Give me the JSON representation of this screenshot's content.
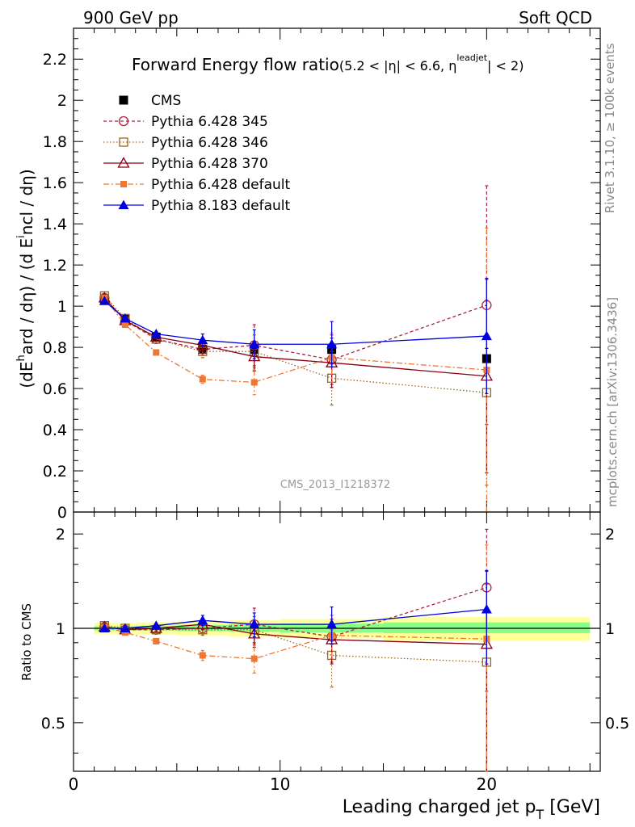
{
  "header": {
    "left_label": "900 GeV pp",
    "right_label": "Soft QCD"
  },
  "side_labels": {
    "rivet": "Rivet 3.1.10, ≥ 100k events",
    "mcplots": "mcplots.cern.ch [arXiv:1306.3436]"
  },
  "colors": {
    "cms": "#000000",
    "p345": "#aa2244",
    "p346": "#996622",
    "p370": "#880011",
    "p6def": "#ee7733",
    "p8def": "#0000dd",
    "band_stat": "#88ff88",
    "band_syst": "#ffff99"
  },
  "chart_data": [
    {
      "type": "line",
      "panel": "main",
      "title": "Forward Energy flow ratio",
      "title_suffix_parts": [
        "(5.2 < |η| < 6.6, η",
        "leadjet",
        "| < 2)"
      ],
      "ylabel_parts": [
        "(dE",
        "h",
        "ard / dη) / (d E",
        "i",
        "ncl / dη)"
      ],
      "watermark": "CMS_2013_I1218372",
      "xlim": [
        0,
        25.5
      ],
      "ylim": [
        0,
        2.35
      ],
      "yticks": [
        0,
        0.2,
        0.4,
        0.6,
        0.8,
        1,
        1.2,
        1.4,
        1.6,
        1.8,
        2,
        2.2
      ],
      "ytick_labels": [
        "0",
        "0.2",
        "0.4",
        "0.6",
        "0.8",
        "1",
        "1.2",
        "1.4",
        "1.6",
        "1.8",
        "2",
        "2.2"
      ],
      "x": [
        1.5,
        2.5,
        4.0,
        6.25,
        8.75,
        12.5,
        20.0
      ],
      "series": [
        {
          "name": "CMS",
          "values": [
            1.03,
            0.94,
            0.85,
            0.79,
            0.79,
            0.79,
            0.745
          ],
          "errors": [
            0.01,
            0.01,
            0.01,
            0.01,
            0.01,
            0.02,
            0.05
          ]
        },
        {
          "name": "Pythia 6.428 345",
          "values": [
            1.04,
            0.93,
            0.84,
            0.79,
            0.81,
            0.74,
            1.005
          ],
          "errors": [
            0.01,
            0.01,
            0.02,
            0.03,
            0.1,
            0.12,
            0.58
          ]
        },
        {
          "name": "Pythia 6.428 346",
          "values": [
            1.05,
            0.94,
            0.84,
            0.78,
            0.78,
            0.65,
            0.58
          ],
          "errors": [
            0.01,
            0.01,
            0.02,
            0.03,
            0.08,
            0.13,
            0.45
          ]
        },
        {
          "name": "Pythia 6.428 370",
          "values": [
            1.04,
            0.93,
            0.85,
            0.81,
            0.755,
            0.725,
            0.66
          ],
          "errors": [
            0.01,
            0.01,
            0.02,
            0.03,
            0.07,
            0.12,
            0.47
          ]
        },
        {
          "name": "Pythia 6.428 default",
          "values": [
            1.04,
            0.91,
            0.775,
            0.645,
            0.63,
            0.75,
            0.69
          ],
          "errors": [
            0.01,
            0.01,
            0.01,
            0.02,
            0.06,
            0.12,
            0.69
          ]
        },
        {
          "name": "Pythia 8.183 default",
          "values": [
            1.025,
            0.94,
            0.865,
            0.835,
            0.815,
            0.815,
            0.855
          ],
          "errors": [
            0.01,
            0.01,
            0.01,
            0.03,
            0.07,
            0.11,
            0.28
          ]
        }
      ]
    },
    {
      "type": "line",
      "panel": "ratio",
      "ylabel": "Ratio to CMS",
      "xlabel_parts": [
        "Leading charged jet p",
        "T",
        " [GeV]"
      ],
      "xlim": [
        0,
        25.5
      ],
      "ylim": [
        0.35,
        2.35
      ],
      "yscale": "log",
      "xticks": [
        0,
        10,
        20
      ],
      "xtick_labels": [
        "0",
        "10",
        "20"
      ],
      "yticks": [
        0.5,
        1,
        2
      ],
      "ytick_labels": [
        "0.5",
        "1",
        "2"
      ],
      "x": [
        1.5,
        2.5,
        4.0,
        6.25,
        8.75,
        12.5,
        20.0
      ],
      "bands": [
        {
          "name": "syst",
          "x": [
            [
              1.0,
              2.0
            ],
            [
              2.0,
              3.0
            ],
            [
              3.0,
              5.0
            ],
            [
              5.0,
              7.5
            ],
            [
              7.5,
              10.0
            ],
            [
              10.0,
              15.0
            ],
            [
              15.0,
              25.0
            ]
          ],
          "low": [
            0.96,
            0.955,
            0.955,
            0.95,
            0.94,
            0.93,
            0.915
          ],
          "high": [
            1.04,
            1.04,
            1.045,
            1.05,
            1.06,
            1.07,
            1.085
          ]
        },
        {
          "name": "stat",
          "x": [
            [
              1.0,
              2.0
            ],
            [
              2.0,
              3.0
            ],
            [
              3.0,
              5.0
            ],
            [
              5.0,
              7.5
            ],
            [
              7.5,
              10.0
            ],
            [
              10.0,
              15.0
            ],
            [
              15.0,
              25.0
            ]
          ],
          "low": [
            0.985,
            0.985,
            0.985,
            0.98,
            0.975,
            0.97,
            0.965
          ],
          "high": [
            1.015,
            1.015,
            1.02,
            1.025,
            1.03,
            1.035,
            1.045
          ]
        }
      ],
      "series": [
        {
          "name": "Pythia 6.428 345",
          "values": [
            1.01,
            0.99,
            0.99,
            1.0,
            1.03,
            0.94,
            1.35
          ],
          "errors": [
            0.01,
            0.01,
            0.02,
            0.04,
            0.13,
            0.16,
            0.72
          ]
        },
        {
          "name": "Pythia 6.428 346",
          "values": [
            1.02,
            1.0,
            0.99,
            0.99,
            0.99,
            0.82,
            0.78
          ],
          "errors": [
            0.01,
            0.01,
            0.02,
            0.04,
            0.1,
            0.17,
            0.6
          ]
        },
        {
          "name": "Pythia 6.428 370",
          "values": [
            1.01,
            0.99,
            1.0,
            1.03,
            0.96,
            0.92,
            0.89
          ],
          "errors": [
            0.01,
            0.01,
            0.02,
            0.04,
            0.09,
            0.15,
            0.63
          ]
        },
        {
          "name": "Pythia 6.428 default",
          "values": [
            1.01,
            0.97,
            0.91,
            0.82,
            0.8,
            0.95,
            0.925
          ],
          "errors": [
            0.01,
            0.01,
            0.01,
            0.03,
            0.08,
            0.15,
            0.92
          ]
        },
        {
          "name": "Pythia 8.183 default",
          "values": [
            1.0,
            1.0,
            1.02,
            1.06,
            1.03,
            1.03,
            1.15
          ],
          "errors": [
            0.01,
            0.01,
            0.01,
            0.04,
            0.09,
            0.14,
            0.38
          ]
        }
      ]
    }
  ]
}
